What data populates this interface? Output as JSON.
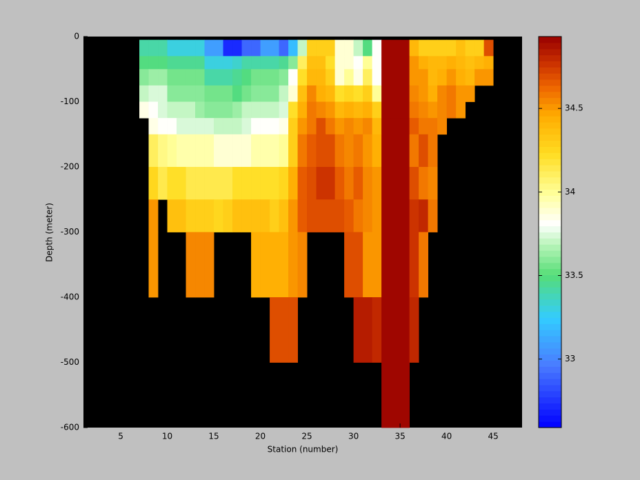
{
  "chart_data": {
    "type": "heatmap",
    "x_label": "Station (number)",
    "y_label": "Depth (meter)",
    "xlim": [
      1,
      48.1
    ],
    "ylim": [
      -600,
      0
    ],
    "xticks": [
      5,
      10,
      15,
      20,
      25,
      30,
      35,
      40,
      45
    ],
    "yticks": [
      0,
      -100,
      -200,
      -300,
      -400,
      -500,
      -600
    ],
    "background": "#000000",
    "x_edges": [
      7,
      8,
      9,
      10,
      11,
      12,
      13,
      14,
      15,
      16,
      17,
      18,
      19,
      20,
      21,
      22,
      23,
      24,
      25,
      26,
      27,
      28,
      29,
      30,
      31,
      32,
      33,
      34,
      35,
      36,
      37,
      38,
      39,
      40,
      41,
      42,
      43,
      44,
      45
    ],
    "y_edges": [
      -5,
      -30,
      -50,
      -75,
      -100,
      -125,
      -150,
      -200,
      -250,
      -300,
      -400,
      -500,
      -600
    ],
    "values": [
      [
        33.4,
        33.4,
        33.4,
        33.3,
        33.3,
        33.3,
        33.3,
        33.1,
        33.1,
        32.7,
        32.7,
        32.9,
        32.9,
        33.1,
        33.1,
        32.9,
        33.2,
        33.7,
        34.3,
        34.3,
        34.3,
        33.9,
        33.9,
        33.7,
        33.5,
        33.8,
        34.9,
        34.9,
        34.9,
        34.4,
        34.3,
        34.3,
        34.3,
        34.3,
        34.35,
        34.3,
        34.3,
        34.7
      ],
      [
        33.5,
        33.5,
        33.5,
        33.45,
        33.45,
        33.45,
        33.45,
        33.3,
        33.3,
        33.3,
        33.35,
        33.4,
        33.4,
        33.4,
        33.4,
        33.45,
        33.6,
        34.1,
        34.35,
        34.35,
        34.2,
        33.9,
        33.9,
        33.8,
        34.0,
        33.8,
        34.9,
        34.9,
        34.9,
        34.5,
        34.45,
        34.4,
        34.4,
        34.45,
        34.4,
        34.35,
        34.4,
        34.45
      ],
      [
        33.6,
        33.65,
        33.65,
        33.55,
        33.55,
        33.55,
        33.55,
        33.4,
        33.4,
        33.4,
        33.45,
        33.5,
        33.55,
        33.55,
        33.55,
        33.6,
        33.8,
        34.2,
        34.4,
        34.4,
        34.3,
        33.9,
        34.0,
        33.85,
        34.1,
        33.8,
        34.9,
        34.9,
        34.9,
        34.5,
        34.5,
        34.4,
        34.45,
        34.5,
        34.45,
        34.4,
        34.5,
        34.5
      ],
      [
        33.7,
        33.75,
        33.75,
        33.6,
        33.6,
        33.6,
        33.6,
        33.55,
        33.55,
        33.55,
        33.5,
        33.55,
        33.6,
        33.6,
        33.6,
        33.7,
        33.9,
        34.35,
        34.55,
        34.45,
        34.4,
        34.2,
        34.25,
        34.2,
        34.3,
        34.0,
        34.9,
        34.9,
        34.9,
        34.55,
        34.5,
        34.45,
        34.55,
        34.6,
        34.5,
        34.5,
        null,
        null
      ],
      [
        33.85,
        33.8,
        33.75,
        33.7,
        33.7,
        33.7,
        33.65,
        33.6,
        33.6,
        33.6,
        33.65,
        33.7,
        33.7,
        33.7,
        33.7,
        33.75,
        34.2,
        34.45,
        34.6,
        34.55,
        34.5,
        34.4,
        34.45,
        34.4,
        34.45,
        34.3,
        34.9,
        34.9,
        34.9,
        34.6,
        34.55,
        34.5,
        34.55,
        34.6,
        34.5,
        null,
        null,
        null
      ],
      [
        null,
        33.85,
        33.8,
        33.8,
        33.75,
        33.75,
        33.75,
        33.75,
        33.7,
        33.7,
        33.7,
        33.75,
        33.8,
        33.8,
        33.8,
        33.85,
        34.3,
        34.5,
        34.6,
        34.7,
        34.6,
        34.5,
        34.55,
        34.5,
        34.55,
        34.4,
        34.9,
        34.9,
        34.9,
        34.65,
        34.6,
        34.6,
        34.55,
        null,
        null,
        null,
        null,
        null
      ],
      [
        null,
        34.1,
        34.05,
        34.0,
        33.95,
        33.95,
        33.95,
        33.95,
        33.9,
        33.9,
        33.9,
        33.9,
        33.95,
        33.95,
        33.95,
        34.0,
        34.3,
        34.6,
        34.65,
        34.7,
        34.7,
        34.6,
        34.55,
        34.6,
        34.5,
        34.45,
        34.9,
        34.9,
        34.9,
        34.6,
        34.7,
        34.6,
        null,
        null,
        null,
        null,
        null,
        null
      ],
      [
        null,
        34.25,
        34.15,
        34.2,
        34.2,
        34.15,
        34.15,
        34.15,
        34.15,
        34.15,
        34.2,
        34.2,
        34.2,
        34.2,
        34.2,
        34.25,
        34.45,
        34.65,
        34.7,
        34.75,
        34.75,
        34.65,
        34.6,
        34.65,
        34.55,
        34.5,
        34.9,
        34.9,
        34.9,
        34.7,
        34.6,
        34.55,
        null,
        null,
        null,
        null,
        null,
        null
      ],
      [
        null,
        34.5,
        null,
        34.35,
        34.35,
        34.3,
        34.3,
        34.3,
        34.25,
        34.3,
        34.35,
        34.35,
        34.35,
        34.35,
        34.3,
        34.35,
        34.5,
        34.65,
        34.7,
        34.7,
        34.7,
        34.7,
        34.65,
        34.6,
        34.55,
        34.5,
        34.9,
        34.9,
        34.9,
        34.75,
        34.8,
        34.6,
        null,
        null,
        null,
        null,
        null,
        null
      ],
      [
        null,
        34.5,
        null,
        null,
        null,
        34.55,
        34.55,
        34.55,
        null,
        null,
        null,
        null,
        34.45,
        34.45,
        34.45,
        34.45,
        34.5,
        34.55,
        null,
        null,
        null,
        null,
        34.7,
        34.7,
        34.5,
        34.5,
        34.9,
        34.9,
        34.9,
        34.75,
        34.6,
        null,
        null,
        null,
        null,
        null,
        null,
        null
      ],
      [
        null,
        null,
        null,
        null,
        null,
        null,
        null,
        null,
        null,
        null,
        null,
        null,
        null,
        null,
        34.7,
        34.7,
        34.7,
        null,
        null,
        null,
        null,
        null,
        null,
        34.85,
        34.85,
        34.8,
        34.9,
        34.9,
        34.9,
        34.8,
        null,
        null,
        null,
        null,
        null,
        null,
        null,
        null
      ],
      [
        null,
        null,
        null,
        null,
        null,
        null,
        null,
        null,
        null,
        null,
        null,
        null,
        null,
        null,
        null,
        null,
        null,
        null,
        null,
        null,
        null,
        null,
        null,
        null,
        null,
        null,
        34.9,
        34.9,
        34.9,
        null,
        null,
        null,
        null,
        null,
        null,
        null,
        null,
        null
      ]
    ],
    "colorbar": {
      "clim": [
        32.59,
        34.93
      ],
      "ticks": [
        33,
        33.5,
        34,
        34.5
      ],
      "levels": 64,
      "colormap": [
        [
          0,
          "#0000ff"
        ],
        [
          0.16,
          "#4a7cff"
        ],
        [
          0.28,
          "#33ccff"
        ],
        [
          0.39,
          "#55dd77"
        ],
        [
          0.47,
          "#bbf5bb"
        ],
        [
          0.52,
          "#ffffff"
        ],
        [
          0.6,
          "#ffff99"
        ],
        [
          0.7,
          "#ffdd22"
        ],
        [
          0.8,
          "#ffaa00"
        ],
        [
          0.87,
          "#ee6600"
        ],
        [
          0.93,
          "#cc3300"
        ],
        [
          1,
          "#990000"
        ]
      ]
    }
  }
}
